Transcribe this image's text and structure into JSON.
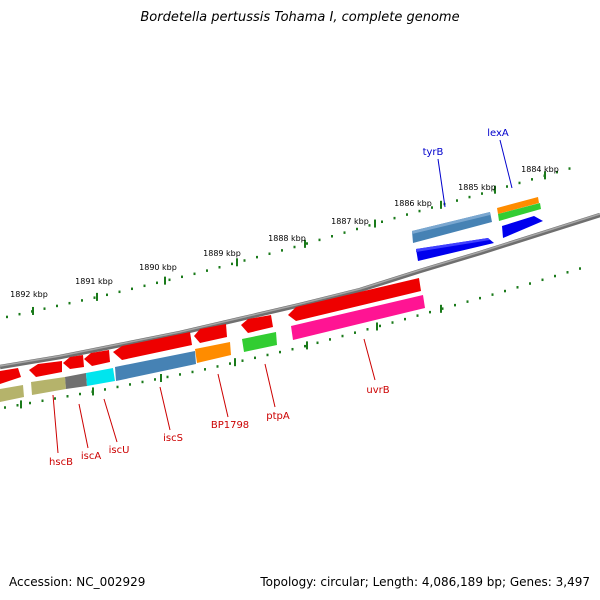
{
  "title": "Bordetella pertussis Tohama I, complete genome",
  "accession": "Accession: NC_002929",
  "stats": "Topology: circular; Length: 4,086,189 bp; Genes: 3,497",
  "kbp_ticks": [
    "1884 kbp",
    "1885 kbp",
    "1886 kbp",
    "1887 kbp",
    "1888 kbp",
    "1889 kbp",
    "1890 kbp",
    "1891 kbp",
    "1892 kbp"
  ],
  "colors": {
    "backbone": "#808080",
    "tick": "#1a7a1a",
    "forward_label": "#0000cc",
    "reverse_label": "#cc0000"
  },
  "forward_genes": [
    {
      "name": "tyrB",
      "color": "#0000cc"
    },
    {
      "name": "lexA",
      "color": "#0000cc"
    }
  ],
  "reverse_genes": [
    {
      "name": "hscB",
      "color": "#cc0000"
    },
    {
      "name": "iscA",
      "color": "#cc0000"
    },
    {
      "name": "iscU",
      "color": "#cc0000"
    },
    {
      "name": "iscS",
      "color": "#cc0000"
    },
    {
      "name": "BP1798",
      "color": "#cc0000"
    },
    {
      "name": "ptpA",
      "color": "#cc0000"
    },
    {
      "name": "uvrB",
      "color": "#cc0000"
    }
  ]
}
